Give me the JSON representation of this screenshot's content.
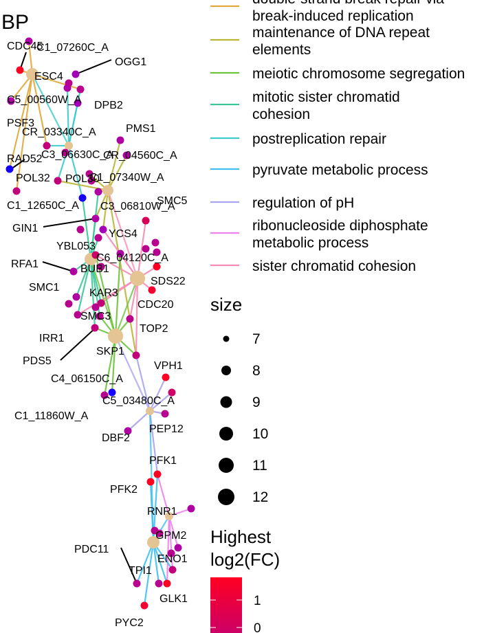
{
  "panel_title": "BP",
  "colors": {
    "category_node": "#E5C494",
    "grad_high": "#FF0022",
    "grad_mid": "#CC0066",
    "grad_low": "#9A00CC",
    "blue_gene": "#1500FF",
    "pathways": {
      "dsbr": "#E0A93A",
      "repeat": "#B9B636",
      "meiotic": "#6CC33C",
      "mitotic": "#3BC69A",
      "postrep": "#3DCBCB",
      "pyruvate": "#40BFEF",
      "ph": "#A9A4F0",
      "ribo": "#EE82EE",
      "sister": "#F58CB5"
    }
  },
  "legend": {
    "pathways": [
      {
        "key": "dsbr",
        "lines": [
          "double-strand break repair via",
          "break-induced replication"
        ]
      },
      {
        "key": "repeat",
        "lines": [
          "maintenance of DNA repeat",
          "elements"
        ]
      },
      {
        "key": "meiotic",
        "lines": [
          "meiotic chromosome segregation"
        ]
      },
      {
        "key": "mitotic",
        "lines": [
          "mitotic sister chromatid",
          "cohesion"
        ]
      },
      {
        "key": "postrep",
        "lines": [
          "postreplication repair"
        ]
      },
      {
        "key": "pyruvate",
        "lines": [
          "pyruvate metabolic process"
        ]
      },
      {
        "key": "ph",
        "lines": [
          "regulation of pH"
        ]
      },
      {
        "key": "ribo",
        "lines": [
          "ribonucleoside diphosphate",
          "metabolic process"
        ]
      },
      {
        "key": "sister",
        "lines": [
          "sister chromatid cohesion"
        ]
      }
    ],
    "size_title": "size",
    "size_values": [
      "7",
      "8",
      "9",
      "10",
      "11",
      "12"
    ],
    "fc_title_lines": [
      "Highest",
      "log2(FC)"
    ],
    "fc_ticks": [
      "1",
      "0"
    ]
  },
  "chart_data": {
    "type": "network",
    "title": "BP",
    "categories": [
      {
        "id": "dsbr",
        "name": "double-strand break repair via break-induced replication",
        "size": null
      },
      {
        "id": "repeat",
        "name": "maintenance of DNA repeat elements",
        "size": null
      },
      {
        "id": "meiotic",
        "name": "meiotic chromosome segregation",
        "size": null
      },
      {
        "id": "mitotic",
        "name": "mitotic sister chromatid cohesion",
        "size": null
      },
      {
        "id": "postrep",
        "name": "postreplication repair",
        "size": null
      },
      {
        "id": "pyruvate",
        "name": "pyruvate metabolic process",
        "size": null
      },
      {
        "id": "ph",
        "name": "regulation of pH",
        "size": null
      },
      {
        "id": "ribo",
        "name": "ribonucleoside diphosphate metabolic process",
        "size": null
      },
      {
        "id": "sister",
        "name": "sister chromatid cohesion",
        "size": null
      }
    ],
    "genes": [
      {
        "name": "CDC45",
        "fc": 1.0
      },
      {
        "name": "C1_07260C_A",
        "fc": 0.2
      },
      {
        "name": "OGG1",
        "fc": 0.1
      },
      {
        "name": "ESC4",
        "fc": 0.2
      },
      {
        "name": "C5_00560W_A",
        "fc": 0.3
      },
      {
        "name": "DPB2",
        "fc": 0.1
      },
      {
        "name": "PSF3",
        "fc": 0.2
      },
      {
        "name": "CR_03340C_A",
        "fc": 0.4
      },
      {
        "name": "PMS1",
        "fc": 0.2
      },
      {
        "name": "RAD52",
        "fc": -0.5
      },
      {
        "name": "C3_06630C_A",
        "fc": 0.3
      },
      {
        "name": "CR_04560C_A",
        "fc": 0.2
      },
      {
        "name": "POL32",
        "fc": 0.4
      },
      {
        "name": "POL30",
        "fc": 0.4
      },
      {
        "name": "C1_07340W_A",
        "fc": 0.3
      },
      {
        "name": "C1_12650C_A",
        "fc": -0.5
      },
      {
        "name": "C3_06810W_A",
        "fc": 0.2
      },
      {
        "name": "SMC5",
        "fc": 0.6
      },
      {
        "name": "GIN1",
        "fc": 0.2
      },
      {
        "name": "YCS4",
        "fc": 0.1
      },
      {
        "name": "YBL053",
        "fc": 0.3
      },
      {
        "name": "C6_04120C_A",
        "fc": 0.2
      },
      {
        "name": "RFA1",
        "fc": 0.2
      },
      {
        "name": "BUB1",
        "fc": 0.5
      },
      {
        "name": "SDS22",
        "fc": 1.0
      },
      {
        "name": "SMC1",
        "fc": 0.2
      },
      {
        "name": "KAR3",
        "fc": 0.4
      },
      {
        "name": "CDC20",
        "fc": 0.9
      },
      {
        "name": "SMC3",
        "fc": 0.3
      },
      {
        "name": "TOP2",
        "fc": 0.3
      },
      {
        "name": "IRR1",
        "fc": 0.4
      },
      {
        "name": "SKP1",
        "fc": 0.4
      },
      {
        "name": "PDS5",
        "fc": 0.3
      },
      {
        "name": "C4_06150C_A",
        "fc": 0.3
      },
      {
        "name": "VPH1",
        "fc": 1.0
      },
      {
        "name": "C5_03480C_A",
        "fc": 0.5
      },
      {
        "name": "C1_11860W_A",
        "fc": -0.5
      },
      {
        "name": "PEP12",
        "fc": 0.3
      },
      {
        "name": "DBF2",
        "fc": 0.2
      },
      {
        "name": "PFK1",
        "fc": 1.0
      },
      {
        "name": "PFK2",
        "fc": 1.0
      },
      {
        "name": "RNR1",
        "fc": 0.2
      },
      {
        "name": "GPM2",
        "fc": 0.2
      },
      {
        "name": "PDC11",
        "fc": 0.3
      },
      {
        "name": "ENO1",
        "fc": 0.4
      },
      {
        "name": "TPI1",
        "fc": 0.3
      },
      {
        "name": "GLK1",
        "fc": 1.0
      },
      {
        "name": "PYC2",
        "fc": 0.9
      }
    ],
    "size_scale": [
      7,
      8,
      9,
      10,
      11,
      12
    ],
    "color_scale": {
      "title": "Highest log2(FC)",
      "ticks": [
        1,
        0
      ]
    }
  }
}
